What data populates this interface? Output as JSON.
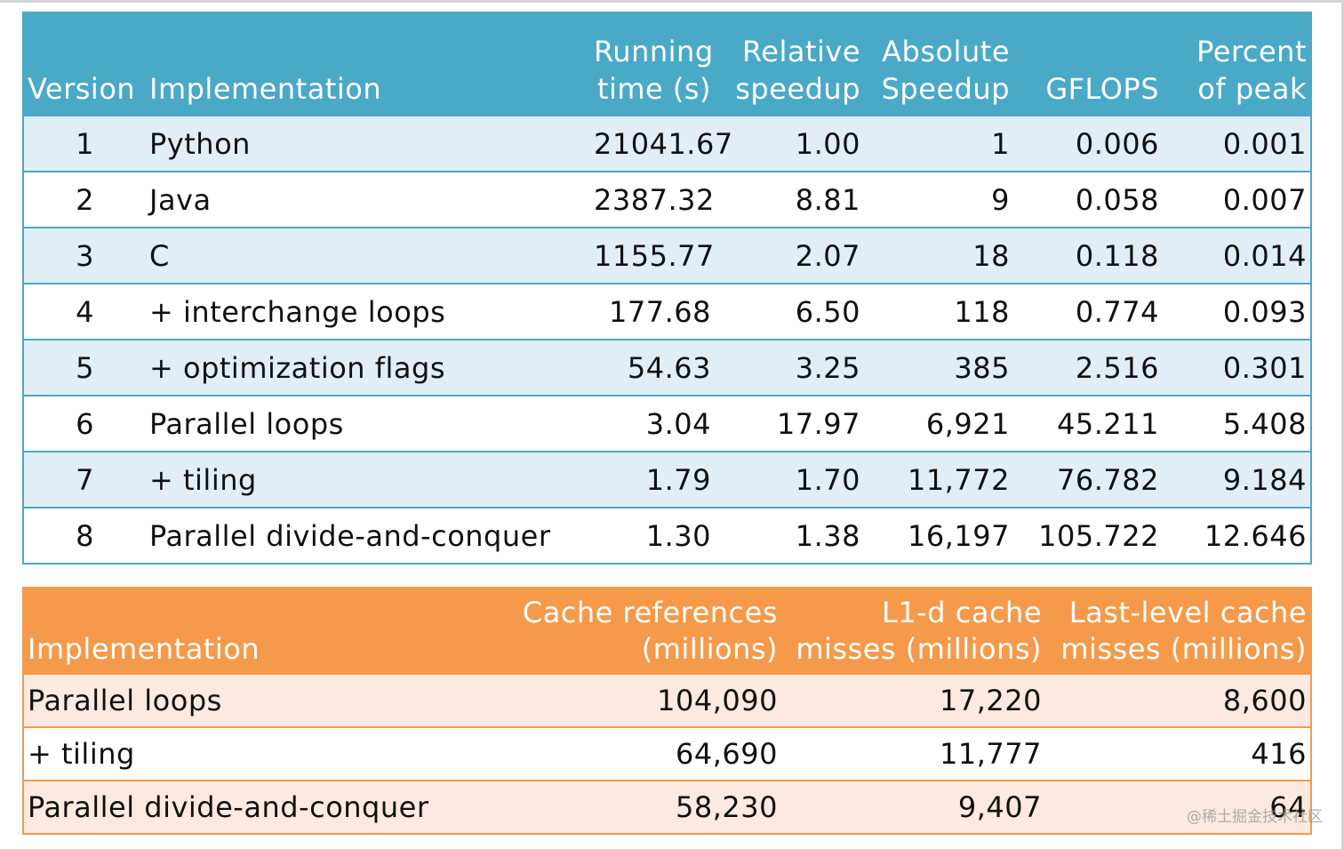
{
  "performance_table": {
    "header": {
      "version": "Version",
      "implementation": "Implementation",
      "running_time_l1": "Running",
      "running_time_l2": "time (s)",
      "relative_speedup_l1": "Relative",
      "relative_speedup_l2": "speedup",
      "absolute_speedup_l1": "Absolute",
      "absolute_speedup_l2": "Speedup",
      "gflops": "GFLOPS",
      "percent_peak_l1": "Percent",
      "percent_peak_l2": "of peak"
    },
    "rows": [
      {
        "version": "1",
        "implementation": "Python",
        "running_time": "21041.67",
        "relative_speedup": "1.00",
        "absolute_speedup": "1",
        "gflops": "0.006",
        "percent_peak": "0.001"
      },
      {
        "version": "2",
        "implementation": "Java",
        "running_time": "2387.32",
        "relative_speedup": "8.81",
        "absolute_speedup": "9",
        "gflops": "0.058",
        "percent_peak": "0.007"
      },
      {
        "version": "3",
        "implementation": "C",
        "running_time": "1155.77",
        "relative_speedup": "2.07",
        "absolute_speedup": "18",
        "gflops": "0.118",
        "percent_peak": "0.014"
      },
      {
        "version": "4",
        "implementation": "+ interchange loops",
        "running_time": "177.68",
        "relative_speedup": "6.50",
        "absolute_speedup": "118",
        "gflops": "0.774",
        "percent_peak": "0.093"
      },
      {
        "version": "5",
        "implementation": "+ optimization flags",
        "running_time": "54.63",
        "relative_speedup": "3.25",
        "absolute_speedup": "385",
        "gflops": "2.516",
        "percent_peak": "0.301"
      },
      {
        "version": "6",
        "implementation": "Parallel loops",
        "running_time": "3.04",
        "relative_speedup": "17.97",
        "absolute_speedup": "6,921",
        "gflops": "45.211",
        "percent_peak": "5.408"
      },
      {
        "version": "7",
        "implementation": "+ tiling",
        "running_time": "1.79",
        "relative_speedup": "1.70",
        "absolute_speedup": "11,772",
        "gflops": "76.782",
        "percent_peak": "9.184"
      },
      {
        "version": "8",
        "implementation": "Parallel divide-and-conquer",
        "running_time": "1.30",
        "relative_speedup": "1.38",
        "absolute_speedup": "16,197",
        "gflops": "105.722",
        "percent_peak": "12.646"
      }
    ]
  },
  "cache_table": {
    "header": {
      "implementation": "Implementation",
      "cache_refs_l1": "Cache references",
      "cache_refs_l2": "(millions)",
      "l1d_l1": "L1-d cache",
      "l1d_l2": "misses (millions)",
      "llc_l1": "Last-level cache",
      "llc_l2": "misses (millions)"
    },
    "rows": [
      {
        "implementation": "Parallel loops",
        "cache_refs": "104,090",
        "l1d_misses": "17,220",
        "llc_misses": "8,600"
      },
      {
        "implementation": "+ tiling",
        "cache_refs": "64,690",
        "l1d_misses": "11,777",
        "llc_misses": "416"
      },
      {
        "implementation": "Parallel divide-and-conquer",
        "cache_refs": "58,230",
        "l1d_misses": "9,407",
        "llc_misses": "64"
      }
    ]
  },
  "watermark": "@稀土掘金技术社区",
  "colors": {
    "perf_header": "#4aa9c7",
    "perf_row_shade": "#e2eef5",
    "cache_header": "#f59a4a",
    "cache_row_shade": "#fde9df"
  }
}
